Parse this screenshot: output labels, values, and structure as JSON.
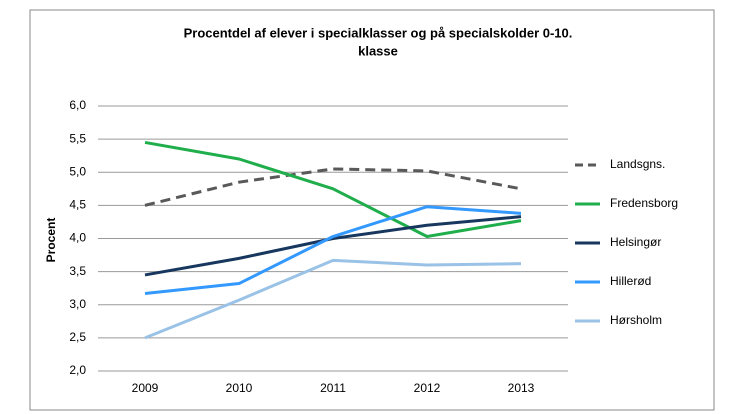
{
  "chart_data": {
    "type": "line",
    "title": [
      "Procentdel af elever i specialklasser og på specialskolder  0-10.",
      "klasse"
    ],
    "y_label": "Procent",
    "categories": [
      "2009",
      "2010",
      "2011",
      "2012",
      "2013"
    ],
    "series": [
      {
        "name": "Landsgns.",
        "color": "#595959",
        "dashed": true,
        "values": [
          4.5,
          4.85,
          5.05,
          5.02,
          4.75
        ]
      },
      {
        "name": "Fredensborg",
        "color": "#1fae4b",
        "values": [
          5.45,
          5.2,
          4.75,
          4.03,
          4.27
        ]
      },
      {
        "name": "Helsingør",
        "color": "#17375e",
        "values": [
          3.45,
          3.7,
          4.0,
          4.2,
          4.33
        ]
      },
      {
        "name": "Hillerød",
        "color": "#3399ff",
        "values": [
          3.17,
          3.32,
          4.03,
          4.48,
          4.38
        ]
      },
      {
        "name": "Hørsholm",
        "color": "#99c2e6",
        "values": [
          2.5,
          3.07,
          3.67,
          3.6,
          3.62
        ]
      }
    ],
    "ylim": [
      2,
      6
    ],
    "yticks": [
      {
        "value": 2,
        "label": "2,0"
      },
      {
        "value": 2.5,
        "label": "2,5"
      },
      {
        "value": 3,
        "label": "3,0"
      },
      {
        "value": 3.5,
        "label": "3,5"
      },
      {
        "value": 4,
        "label": "4,0"
      },
      {
        "value": 4.5,
        "label": "4,5"
      },
      {
        "value": 5,
        "label": "5,0"
      },
      {
        "value": 5.5,
        "label": "5,5"
      },
      {
        "value": 6,
        "label": "6,0"
      }
    ],
    "grid": true,
    "legend": "right"
  }
}
